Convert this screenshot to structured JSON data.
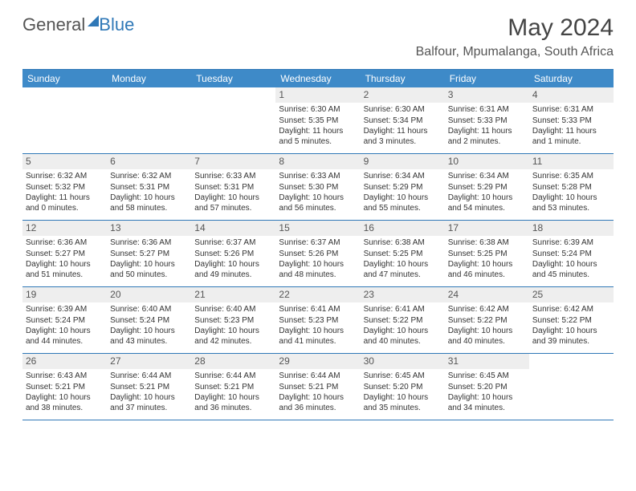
{
  "logo": {
    "text1": "General",
    "text2": "Blue"
  },
  "title": "May 2024",
  "location": "Balfour, Mpumalanga, South Africa",
  "colors": {
    "header_bar": "#3e8ac8",
    "border": "#2f78b7",
    "daynum_bg": "#eeeeee",
    "text": "#333333",
    "logo_gray": "#555555",
    "logo_blue": "#2f78b7"
  },
  "weekdays": [
    "Sunday",
    "Monday",
    "Tuesday",
    "Wednesday",
    "Thursday",
    "Friday",
    "Saturday"
  ],
  "weeks": [
    [
      {
        "n": "",
        "empty": true
      },
      {
        "n": "",
        "empty": true
      },
      {
        "n": "",
        "empty": true
      },
      {
        "n": "1",
        "sunrise": "Sunrise: 6:30 AM",
        "sunset": "Sunset: 5:35 PM",
        "daylight": "Daylight: 11 hours and 5 minutes."
      },
      {
        "n": "2",
        "sunrise": "Sunrise: 6:30 AM",
        "sunset": "Sunset: 5:34 PM",
        "daylight": "Daylight: 11 hours and 3 minutes."
      },
      {
        "n": "3",
        "sunrise": "Sunrise: 6:31 AM",
        "sunset": "Sunset: 5:33 PM",
        "daylight": "Daylight: 11 hours and 2 minutes."
      },
      {
        "n": "4",
        "sunrise": "Sunrise: 6:31 AM",
        "sunset": "Sunset: 5:33 PM",
        "daylight": "Daylight: 11 hours and 1 minute."
      }
    ],
    [
      {
        "n": "5",
        "sunrise": "Sunrise: 6:32 AM",
        "sunset": "Sunset: 5:32 PM",
        "daylight": "Daylight: 11 hours and 0 minutes."
      },
      {
        "n": "6",
        "sunrise": "Sunrise: 6:32 AM",
        "sunset": "Sunset: 5:31 PM",
        "daylight": "Daylight: 10 hours and 58 minutes."
      },
      {
        "n": "7",
        "sunrise": "Sunrise: 6:33 AM",
        "sunset": "Sunset: 5:31 PM",
        "daylight": "Daylight: 10 hours and 57 minutes."
      },
      {
        "n": "8",
        "sunrise": "Sunrise: 6:33 AM",
        "sunset": "Sunset: 5:30 PM",
        "daylight": "Daylight: 10 hours and 56 minutes."
      },
      {
        "n": "9",
        "sunrise": "Sunrise: 6:34 AM",
        "sunset": "Sunset: 5:29 PM",
        "daylight": "Daylight: 10 hours and 55 minutes."
      },
      {
        "n": "10",
        "sunrise": "Sunrise: 6:34 AM",
        "sunset": "Sunset: 5:29 PM",
        "daylight": "Daylight: 10 hours and 54 minutes."
      },
      {
        "n": "11",
        "sunrise": "Sunrise: 6:35 AM",
        "sunset": "Sunset: 5:28 PM",
        "daylight": "Daylight: 10 hours and 53 minutes."
      }
    ],
    [
      {
        "n": "12",
        "sunrise": "Sunrise: 6:36 AM",
        "sunset": "Sunset: 5:27 PM",
        "daylight": "Daylight: 10 hours and 51 minutes."
      },
      {
        "n": "13",
        "sunrise": "Sunrise: 6:36 AM",
        "sunset": "Sunset: 5:27 PM",
        "daylight": "Daylight: 10 hours and 50 minutes."
      },
      {
        "n": "14",
        "sunrise": "Sunrise: 6:37 AM",
        "sunset": "Sunset: 5:26 PM",
        "daylight": "Daylight: 10 hours and 49 minutes."
      },
      {
        "n": "15",
        "sunrise": "Sunrise: 6:37 AM",
        "sunset": "Sunset: 5:26 PM",
        "daylight": "Daylight: 10 hours and 48 minutes."
      },
      {
        "n": "16",
        "sunrise": "Sunrise: 6:38 AM",
        "sunset": "Sunset: 5:25 PM",
        "daylight": "Daylight: 10 hours and 47 minutes."
      },
      {
        "n": "17",
        "sunrise": "Sunrise: 6:38 AM",
        "sunset": "Sunset: 5:25 PM",
        "daylight": "Daylight: 10 hours and 46 minutes."
      },
      {
        "n": "18",
        "sunrise": "Sunrise: 6:39 AM",
        "sunset": "Sunset: 5:24 PM",
        "daylight": "Daylight: 10 hours and 45 minutes."
      }
    ],
    [
      {
        "n": "19",
        "sunrise": "Sunrise: 6:39 AM",
        "sunset": "Sunset: 5:24 PM",
        "daylight": "Daylight: 10 hours and 44 minutes."
      },
      {
        "n": "20",
        "sunrise": "Sunrise: 6:40 AM",
        "sunset": "Sunset: 5:24 PM",
        "daylight": "Daylight: 10 hours and 43 minutes."
      },
      {
        "n": "21",
        "sunrise": "Sunrise: 6:40 AM",
        "sunset": "Sunset: 5:23 PM",
        "daylight": "Daylight: 10 hours and 42 minutes."
      },
      {
        "n": "22",
        "sunrise": "Sunrise: 6:41 AM",
        "sunset": "Sunset: 5:23 PM",
        "daylight": "Daylight: 10 hours and 41 minutes."
      },
      {
        "n": "23",
        "sunrise": "Sunrise: 6:41 AM",
        "sunset": "Sunset: 5:22 PM",
        "daylight": "Daylight: 10 hours and 40 minutes."
      },
      {
        "n": "24",
        "sunrise": "Sunrise: 6:42 AM",
        "sunset": "Sunset: 5:22 PM",
        "daylight": "Daylight: 10 hours and 40 minutes."
      },
      {
        "n": "25",
        "sunrise": "Sunrise: 6:42 AM",
        "sunset": "Sunset: 5:22 PM",
        "daylight": "Daylight: 10 hours and 39 minutes."
      }
    ],
    [
      {
        "n": "26",
        "sunrise": "Sunrise: 6:43 AM",
        "sunset": "Sunset: 5:21 PM",
        "daylight": "Daylight: 10 hours and 38 minutes."
      },
      {
        "n": "27",
        "sunrise": "Sunrise: 6:44 AM",
        "sunset": "Sunset: 5:21 PM",
        "daylight": "Daylight: 10 hours and 37 minutes."
      },
      {
        "n": "28",
        "sunrise": "Sunrise: 6:44 AM",
        "sunset": "Sunset: 5:21 PM",
        "daylight": "Daylight: 10 hours and 36 minutes."
      },
      {
        "n": "29",
        "sunrise": "Sunrise: 6:44 AM",
        "sunset": "Sunset: 5:21 PM",
        "daylight": "Daylight: 10 hours and 36 minutes."
      },
      {
        "n": "30",
        "sunrise": "Sunrise: 6:45 AM",
        "sunset": "Sunset: 5:20 PM",
        "daylight": "Daylight: 10 hours and 35 minutes."
      },
      {
        "n": "31",
        "sunrise": "Sunrise: 6:45 AM",
        "sunset": "Sunset: 5:20 PM",
        "daylight": "Daylight: 10 hours and 34 minutes."
      },
      {
        "n": "",
        "empty": true
      }
    ]
  ]
}
